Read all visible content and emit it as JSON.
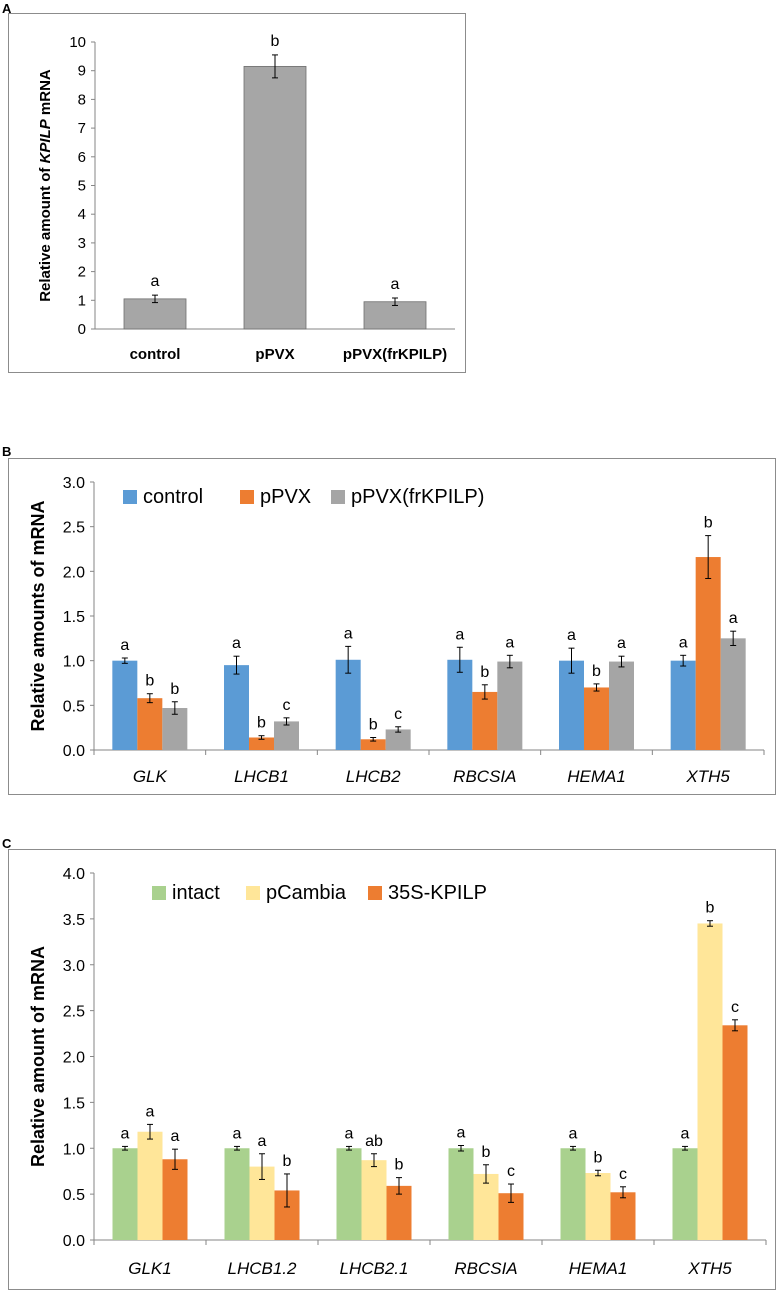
{
  "colors": {
    "gray_bar": "#a6a6a6",
    "control": "#5b9bd5",
    "pPVX": "#ed7d31",
    "frKPILP": "#a5a5a5",
    "intact": "#a9d18e",
    "pCambia": "#ffe699",
    "kpilp35s": "#ed7d31"
  },
  "panels": {
    "a": "A",
    "b": "B",
    "c": "C"
  },
  "chart_data": [
    {
      "type": "bar",
      "panel": "A",
      "title": "",
      "xlabel": "",
      "ylabel_parts": [
        "Relative amount of ",
        "KPILP",
        " mRNA"
      ],
      "categories": [
        "control",
        "pPVX",
        "pPVX(frKPILP)"
      ],
      "values": [
        1.05,
        9.15,
        0.95
      ],
      "errors": [
        0.13,
        0.4,
        0.13
      ],
      "letters": [
        "a",
        "b",
        "a"
      ],
      "ylim": [
        0,
        10
      ],
      "yticks": [
        0,
        1,
        2,
        3,
        4,
        5,
        6,
        7,
        8,
        9,
        10
      ],
      "ytick_labels": [
        "0",
        "1",
        "2",
        "3",
        "4",
        "5",
        "6",
        "7",
        "8",
        "9",
        "10"
      ],
      "grid": false
    },
    {
      "type": "bar",
      "panel": "B",
      "ylabel": "Relative amounts of mRNA",
      "categories": [
        "GLK",
        "LHCB1",
        "LHCB2",
        "RBCSIA",
        "HEMA1",
        "XTH5"
      ],
      "series": [
        {
          "name": "control",
          "values": [
            1.0,
            0.95,
            1.01,
            1.01,
            1.0,
            1.0
          ],
          "errors": [
            0.03,
            0.1,
            0.15,
            0.14,
            0.14,
            0.06
          ],
          "letters": [
            "a",
            "a",
            "a",
            "a",
            "a",
            "a"
          ]
        },
        {
          "name": "pPVX",
          "values": [
            0.58,
            0.14,
            0.12,
            0.65,
            0.7,
            2.16
          ],
          "errors": [
            0.05,
            0.02,
            0.02,
            0.08,
            0.04,
            0.24
          ],
          "letters": [
            "b",
            "b",
            "b",
            "b",
            "b",
            "b"
          ]
        },
        {
          "name": "pPVX(frKPILP)",
          "values": [
            0.47,
            0.32,
            0.23,
            0.99,
            0.99,
            1.25
          ],
          "errors": [
            0.07,
            0.04,
            0.03,
            0.07,
            0.06,
            0.08
          ],
          "letters": [
            "b",
            "c",
            "c",
            "a",
            "a",
            "a"
          ]
        }
      ],
      "ylim": [
        0,
        3
      ],
      "yticks": [
        0,
        0.5,
        1,
        1.5,
        2,
        2.5,
        3
      ],
      "ytick_labels": [
        "0.0",
        "0.5",
        "1.0",
        "1.5",
        "2.0",
        "2.5",
        "3.0"
      ],
      "legend": "top-left",
      "grid": false
    },
    {
      "type": "bar",
      "panel": "C",
      "ylabel": "Relative amount of mRNA",
      "categories": [
        "GLK1",
        "LHCB1.2",
        "LHCB2.1",
        "RBCSIA",
        "HEMA1",
        "XTH5"
      ],
      "series": [
        {
          "name": "intact",
          "values": [
            1.0,
            1.0,
            1.0,
            1.0,
            1.0,
            1.0
          ],
          "errors": [
            0.02,
            0.02,
            0.02,
            0.03,
            0.02,
            0.02
          ],
          "letters": [
            "a",
            "a",
            "a",
            "a",
            "a",
            "a"
          ]
        },
        {
          "name": "pCambia",
          "values": [
            1.18,
            0.8,
            0.87,
            0.72,
            0.73,
            3.45
          ],
          "errors": [
            0.08,
            0.14,
            0.07,
            0.1,
            0.03,
            0.03
          ],
          "letters": [
            "a",
            "a",
            "ab",
            "b",
            "b",
            "b"
          ]
        },
        {
          "name": "35S-KPILP",
          "values": [
            0.88,
            0.54,
            0.59,
            0.51,
            0.52,
            2.34
          ],
          "errors": [
            0.11,
            0.18,
            0.09,
            0.1,
            0.06,
            0.06
          ],
          "letters": [
            "a",
            "b",
            "b",
            "c",
            "c",
            "c"
          ]
        }
      ],
      "ylim": [
        0,
        4
      ],
      "yticks": [
        0,
        0.5,
        1,
        1.5,
        2,
        2.5,
        3,
        3.5,
        4
      ],
      "ytick_labels": [
        "0.0",
        "0.5",
        "1.0",
        "1.5",
        "2.0",
        "2.5",
        "3.0",
        "3.5",
        "4.0"
      ],
      "legend": "top-left",
      "grid": false
    }
  ]
}
